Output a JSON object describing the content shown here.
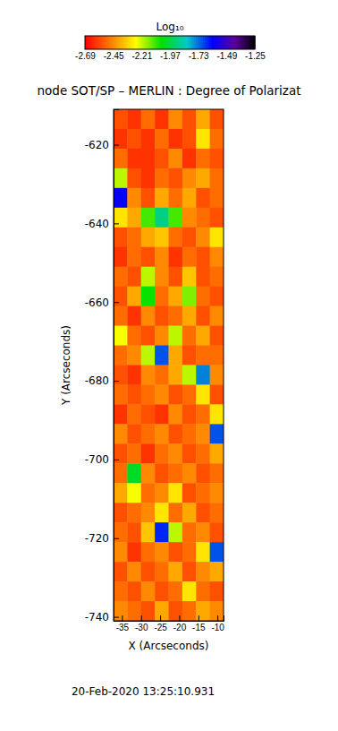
{
  "chart_data": {
    "type": "heatmap",
    "title": "node SOT/SP – MERLIN : Degree of Polarizat",
    "x_label": "X (Arcseconds)",
    "y_label": "Y (Arcseconds)",
    "date": "20-Feb-2020 13:25:10.931",
    "xlim": [
      -37.2,
      -8.4
    ],
    "ylim": [
      -741,
      -611
    ],
    "xticks": [
      -35,
      -30,
      -25,
      -20,
      -15,
      -10
    ],
    "yticks": [
      -620,
      -640,
      -660,
      -680,
      -700,
      -720,
      -740
    ],
    "x_edges": [
      -37.2,
      -33.6,
      -30,
      -26.4,
      -22.8,
      -19.2,
      -15.6,
      -12,
      -8.4
    ],
    "y_edges": [
      -611,
      -616,
      -621,
      -626,
      -631,
      -636,
      -641,
      -646,
      -651,
      -656,
      -661,
      -666,
      -671,
      -676,
      -681,
      -686,
      -691,
      -696,
      -701,
      -706,
      -711,
      -716,
      -721,
      -726,
      -731,
      -736,
      -741
    ],
    "z": [
      [
        -2.55,
        -2.6,
        -2.5,
        -2.6,
        -2.45,
        -2.55,
        -2.4,
        -2.55
      ],
      [
        -2.6,
        -2.55,
        -2.6,
        -2.5,
        -2.6,
        -2.55,
        -2.3,
        -2.5
      ],
      [
        -2.5,
        -2.6,
        -2.6,
        -2.55,
        -2.45,
        -2.6,
        -2.5,
        -2.55
      ],
      [
        -2.2,
        -2.55,
        -2.6,
        -2.5,
        -2.55,
        -2.45,
        -2.4,
        -2.5
      ],
      [
        -1.6,
        -2.45,
        -2.55,
        -2.4,
        -2.5,
        -2.4,
        -2.55,
        -2.5
      ],
      [
        -2.3,
        -2.4,
        -2.1,
        -1.9,
        -2.1,
        -2.45,
        -2.5,
        -2.55
      ],
      [
        -2.55,
        -2.5,
        -2.4,
        -2.35,
        -2.5,
        -2.55,
        -2.45,
        -2.3
      ],
      [
        -2.6,
        -2.5,
        -2.55,
        -2.45,
        -2.6,
        -2.5,
        -2.55,
        -2.45
      ],
      [
        -2.5,
        -2.55,
        -2.2,
        -2.45,
        -2.55,
        -2.35,
        -2.55,
        -2.5
      ],
      [
        -2.55,
        -2.4,
        -2.05,
        -2.5,
        -2.4,
        -2.15,
        -2.5,
        -2.55
      ],
      [
        -2.5,
        -2.6,
        -2.45,
        -2.55,
        -2.5,
        -2.4,
        -2.55,
        -2.45
      ],
      [
        -2.25,
        -2.5,
        -2.55,
        -2.45,
        -2.2,
        -2.5,
        -2.4,
        -2.55
      ],
      [
        -2.5,
        -2.45,
        -2.2,
        -1.7,
        -2.4,
        -2.55,
        -2.5,
        -2.5
      ],
      [
        -2.55,
        -2.6,
        -2.45,
        -2.5,
        -2.4,
        -2.2,
        -1.75,
        -2.45
      ],
      [
        -2.5,
        -2.55,
        -2.5,
        -2.45,
        -2.55,
        -2.5,
        -2.3,
        -2.55
      ],
      [
        -2.6,
        -2.5,
        -2.55,
        -2.6,
        -2.45,
        -2.55,
        -2.5,
        -2.3
      ],
      [
        -2.45,
        -2.55,
        -2.5,
        -2.45,
        -2.55,
        -2.5,
        -2.45,
        -1.7
      ],
      [
        -2.55,
        -2.5,
        -2.6,
        -2.5,
        -2.45,
        -2.55,
        -2.5,
        -2.4
      ],
      [
        -2.5,
        -2.0,
        -2.45,
        -2.55,
        -2.5,
        -2.45,
        -2.55,
        -2.5
      ],
      [
        -2.4,
        -2.25,
        -2.5,
        -2.45,
        -2.3,
        -2.55,
        -2.5,
        -2.45
      ],
      [
        -2.55,
        -2.5,
        -2.45,
        -2.3,
        -2.5,
        -2.4,
        -2.55,
        -2.5
      ],
      [
        -2.5,
        -2.55,
        -2.35,
        -1.65,
        -2.2,
        -2.5,
        -2.45,
        -2.55
      ],
      [
        -2.45,
        -2.6,
        -2.5,
        -2.45,
        -2.55,
        -2.5,
        -2.3,
        -1.7
      ],
      [
        -2.55,
        -2.45,
        -2.55,
        -2.5,
        -2.4,
        -2.55,
        -2.45,
        -2.4
      ],
      [
        -2.5,
        -2.55,
        -2.45,
        -2.55,
        -2.5,
        -2.3,
        -2.5,
        -2.55
      ],
      [
        -2.45,
        -2.5,
        -2.55,
        -2.4,
        -2.55,
        -2.5,
        -2.4,
        -2.45
      ]
    ],
    "colorbar": {
      "label": "Log₁₀",
      "range": [
        -2.69,
        -1.25
      ],
      "ticks": [
        -2.69,
        -2.45,
        -2.21,
        -1.97,
        -1.73,
        -1.49,
        -1.25
      ]
    }
  }
}
